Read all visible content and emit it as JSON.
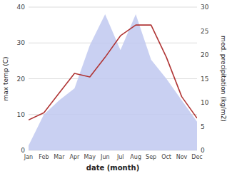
{
  "chart_data": {
    "type": "line",
    "categories": [
      "Jan",
      "Feb",
      "Mar",
      "Apr",
      "May",
      "Jun",
      "Jul",
      "Aug",
      "Sep",
      "Oct",
      "Nov",
      "Dec"
    ],
    "series": [
      {
        "type": "area",
        "axis": "y2",
        "color": "#c0c8f0",
        "values": [
          1.0,
          7.5,
          10.5,
          13.0,
          22.0,
          28.5,
          21.0,
          28.5,
          19.0,
          15.0,
          10.5,
          6.0
        ]
      },
      {
        "type": "line",
        "color": "#b03535",
        "values": [
          8.5,
          10.5,
          16.0,
          21.5,
          20.5,
          26.0,
          32.0,
          35.0,
          35.0,
          26.0,
          15.0,
          9.0
        ]
      }
    ],
    "xlabel": "date (month)",
    "ylabel": "max temp (C)",
    "y2label": "med. precipitation (kg/m2)",
    "ylim": [
      0,
      40
    ],
    "yticks": [
      0,
      10,
      20,
      30,
      40
    ],
    "y2lim": [
      0,
      30
    ],
    "y2ticks": [
      0,
      5,
      10,
      15,
      20,
      25,
      30
    ],
    "grid": true
  }
}
